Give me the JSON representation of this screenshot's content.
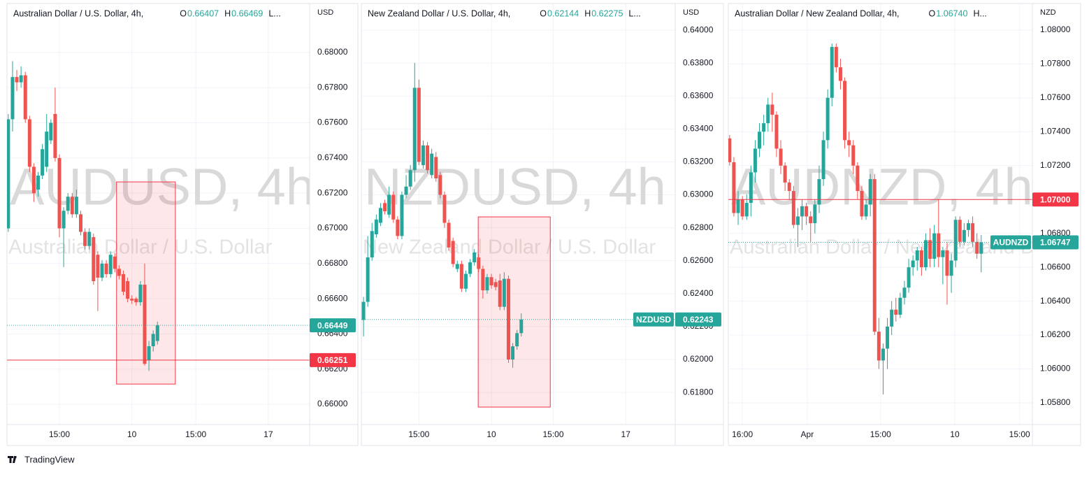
{
  "chart_data": [
    {
      "type": "candlestick",
      "title": "Australian Dollar / U.S. Dollar, 4h,",
      "legend_items": [
        [
          "O",
          "0.66407"
        ],
        [
          "H",
          "0.66469"
        ],
        [
          "L..."
        ]
      ],
      "watermark": "AUDUSD, 4h",
      "watermark_subtitle": "Australian Dollar / U.S. Dollar",
      "unit": "USD",
      "up_color": "#26a69a",
      "down_color": "#ef5350",
      "open": [
        0.67,
        0.6762,
        0.6786,
        0.6783,
        0.6787,
        0.6762,
        0.6735,
        0.6722,
        0.673,
        0.6735,
        0.675,
        0.6765,
        0.674,
        0.67,
        0.671,
        0.6718,
        0.6708,
        0.6708,
        0.6698,
        0.669,
        0.6695,
        0.6685,
        0.6672,
        0.668,
        0.6674,
        0.6684,
        0.6677,
        0.6674,
        0.667,
        0.666,
        0.666,
        0.6658,
        0.6668,
        0.6625,
        0.6633,
        0.6636
      ],
      "high": [
        0.6765,
        0.6795,
        0.679,
        0.6792,
        0.6789,
        0.6764,
        0.6737,
        0.6732,
        0.6748,
        0.6765,
        0.6762,
        0.678,
        0.6742,
        0.6712,
        0.672,
        0.672,
        0.6722,
        0.671,
        0.67,
        0.67,
        0.6697,
        0.6687,
        0.6682,
        0.6682,
        0.6687,
        0.6686,
        0.6679,
        0.6676,
        0.6672,
        0.6662,
        0.6661,
        0.667,
        0.668,
        0.6636,
        0.6642,
        0.6647
      ],
      "low": [
        0.6698,
        0.6755,
        0.6778,
        0.678,
        0.676,
        0.6732,
        0.6715,
        0.6718,
        0.6728,
        0.6732,
        0.6748,
        0.6738,
        0.6695,
        0.6678,
        0.6708,
        0.6706,
        0.6706,
        0.6696,
        0.6688,
        0.6688,
        0.6668,
        0.6653,
        0.667,
        0.6672,
        0.6672,
        0.6675,
        0.6671,
        0.6662,
        0.6658,
        0.6657,
        0.6656,
        0.6656,
        0.6622,
        0.6619,
        0.663,
        0.6634
      ],
      "close": [
        0.6762,
        0.6786,
        0.6783,
        0.6787,
        0.6762,
        0.6735,
        0.672,
        0.673,
        0.6745,
        0.6755,
        0.676,
        0.674,
        0.67,
        0.671,
        0.6718,
        0.6708,
        0.6718,
        0.6698,
        0.669,
        0.6698,
        0.667,
        0.6672,
        0.668,
        0.6674,
        0.6685,
        0.6677,
        0.6673,
        0.6664,
        0.666,
        0.6659,
        0.6658,
        0.6668,
        0.6623,
        0.6633,
        0.664,
        0.66449
      ],
      "xlim": [
        -0.3,
        70.7
      ],
      "xticks": [
        {
          "value": 12,
          "label": "15:00"
        },
        {
          "value": 29,
          "label": "10"
        },
        {
          "value": 44,
          "label": "15:00"
        },
        {
          "value": 61,
          "label": "17"
        }
      ],
      "ylim": [
        0.65885,
        0.68266
      ],
      "yticks": [
        {
          "value": 0.66,
          "label": "0.66000"
        },
        {
          "value": 0.662,
          "label": "0.66200"
        },
        {
          "value": 0.664,
          "label": "0.66400"
        },
        {
          "value": 0.666,
          "label": "0.66600"
        },
        {
          "value": 0.668,
          "label": "0.66800"
        },
        {
          "value": 0.67,
          "label": "0.67000"
        },
        {
          "value": 0.672,
          "label": "0.67200"
        },
        {
          "value": 0.674,
          "label": "0.67400"
        },
        {
          "value": 0.676,
          "label": "0.67600"
        },
        {
          "value": 0.678,
          "label": "0.67800"
        },
        {
          "value": 0.68,
          "label": "0.68000"
        }
      ],
      "grid": true,
      "highlight": {
        "x": [
          25.4,
          39.2
        ],
        "y": [
          0.67264,
          0.66115
        ],
        "color": "#f23645"
      },
      "hlines": [
        {
          "value": 0.66251,
          "label": "0.66251",
          "color": "#f23645"
        }
      ],
      "last_price": {
        "value": 0.66449,
        "label": "0.66449",
        "color": "#26a69a"
      }
    },
    {
      "type": "candlestick",
      "title": "New Zealand Dollar / U.S. Dollar, 4h,",
      "legend_items": [
        [
          "O",
          "0.62144"
        ],
        [
          "H",
          "0.62275"
        ],
        [
          "L..."
        ]
      ],
      "watermark": "NZDUSD, 4h",
      "watermark_subtitle": "New Zealand Dollar / U.S. Dollar",
      "unit": "USD",
      "up_color": "#26a69a",
      "down_color": "#ef5350",
      "open": [
        0.6224,
        0.6235,
        0.6262,
        0.6276,
        0.6283,
        0.6295,
        0.6288,
        0.63,
        0.6285,
        0.6275,
        0.63,
        0.6305,
        0.6315,
        0.6365,
        0.6318,
        0.633,
        0.6312,
        0.6323,
        0.6312,
        0.63,
        0.6283,
        0.6272,
        0.6255,
        0.6258,
        0.6243,
        0.6252,
        0.6259,
        0.6262,
        0.6255,
        0.6242,
        0.625,
        0.6247,
        0.6248,
        0.6232,
        0.6249,
        0.62,
        0.6208,
        0.6216
      ],
      "high": [
        0.6238,
        0.6275,
        0.6283,
        0.6288,
        0.6295,
        0.6297,
        0.6305,
        0.6302,
        0.6287,
        0.6302,
        0.6312,
        0.6318,
        0.638,
        0.637,
        0.6333,
        0.6332,
        0.6328,
        0.6326,
        0.6314,
        0.6302,
        0.6285,
        0.6274,
        0.626,
        0.626,
        0.6254,
        0.6261,
        0.6267,
        0.6264,
        0.6257,
        0.6252,
        0.6252,
        0.6249,
        0.6252,
        0.6253,
        0.6251,
        0.621,
        0.6218,
        0.6228
      ],
      "low": [
        0.6214,
        0.6232,
        0.626,
        0.6274,
        0.6281,
        0.6288,
        0.6286,
        0.6283,
        0.6273,
        0.6273,
        0.6298,
        0.6303,
        0.6308,
        0.6318,
        0.6316,
        0.6313,
        0.631,
        0.6308,
        0.6298,
        0.628,
        0.6266,
        0.6256,
        0.6253,
        0.6241,
        0.6241,
        0.625,
        0.6257,
        0.6253,
        0.6237,
        0.624,
        0.6243,
        0.6242,
        0.623,
        0.623,
        0.6198,
        0.6195,
        0.6206,
        0.6214
      ],
      "close": [
        0.6235,
        0.6262,
        0.6278,
        0.6285,
        0.6292,
        0.629,
        0.63,
        0.6285,
        0.6275,
        0.63,
        0.6305,
        0.6315,
        0.6365,
        0.632,
        0.633,
        0.6315,
        0.6325,
        0.631,
        0.63,
        0.6283,
        0.6268,
        0.6258,
        0.6258,
        0.6243,
        0.6252,
        0.6259,
        0.6265,
        0.6255,
        0.6242,
        0.625,
        0.6245,
        0.6244,
        0.6232,
        0.6249,
        0.62,
        0.6208,
        0.6216,
        0.62243
      ],
      "xlim": [
        -0.5,
        73.1
      ],
      "xticks": [
        {
          "value": 13,
          "label": "15:00"
        },
        {
          "value": 30,
          "label": "10"
        },
        {
          "value": 44.5,
          "label": "15:00"
        },
        {
          "value": 61.5,
          "label": "17"
        }
      ],
      "ylim": [
        0.61605,
        0.64149
      ],
      "yticks": [
        {
          "value": 0.618,
          "label": "0.61800"
        },
        {
          "value": 0.62,
          "label": "0.62000"
        },
        {
          "value": 0.622,
          "label": "0.62200"
        },
        {
          "value": 0.624,
          "label": "0.62400"
        },
        {
          "value": 0.626,
          "label": "0.62600"
        },
        {
          "value": 0.628,
          "label": "0.62800"
        },
        {
          "value": 0.63,
          "label": "0.63000"
        },
        {
          "value": 0.632,
          "label": "0.63200"
        },
        {
          "value": 0.634,
          "label": "0.63400"
        },
        {
          "value": 0.636,
          "label": "0.63600"
        },
        {
          "value": 0.638,
          "label": "0.63800"
        },
        {
          "value": 0.64,
          "label": "0.64000"
        }
      ],
      "grid": true,
      "highlight": {
        "x": [
          26.9,
          43.8
        ],
        "y": [
          0.62866,
          0.61711
        ],
        "color": "#f23645"
      },
      "hlines": [],
      "last_price": {
        "value": 0.62243,
        "label": "0.62243",
        "tag": "NZDUSD",
        "color": "#26a69a"
      }
    },
    {
      "type": "candlestick",
      "title": "Australian Dollar / New Zealand Dollar, 4h,",
      "legend_items": [
        [
          "O",
          "1.06740"
        ],
        [
          "H..."
        ]
      ],
      "watermark": "AUDNZD, 4h",
      "watermark_subtitle": "Australian Dollar / New Zealand Dollar",
      "unit": "NZD",
      "up_color": "#26a69a",
      "down_color": "#ef5350",
      "open": [
        1.0736,
        1.0722,
        1.0692,
        1.07,
        1.069,
        1.0698,
        1.0716,
        1.073,
        1.074,
        1.0745,
        1.0756,
        1.075,
        1.073,
        1.072,
        1.071,
        1.0705,
        1.0685,
        1.069,
        1.0696,
        1.069,
        1.0686,
        1.0697,
        1.0712,
        1.0735,
        1.076,
        1.079,
        1.0778,
        1.077,
        1.0735,
        1.0732,
        1.072,
        1.0705,
        1.069,
        1.0697,
        1.0712,
        1.0622,
        1.0605,
        1.0612,
        1.0625,
        1.0635,
        1.0632,
        1.0642,
        1.0648,
        1.066,
        1.0664,
        1.067,
        1.066,
        1.0676,
        1.0665,
        1.068,
        1.0666,
        1.067,
        1.0655,
        1.0664,
        1.0688,
        1.0675,
        1.0682,
        1.0686,
        1.0675,
        1.0668
      ],
      "high": [
        1.0738,
        1.0725,
        1.0705,
        1.0702,
        1.0703,
        1.072,
        1.0735,
        1.0745,
        1.075,
        1.076,
        1.0763,
        1.0752,
        1.0735,
        1.0722,
        1.0712,
        1.0708,
        1.0695,
        1.07,
        1.0698,
        1.0693,
        1.07,
        1.072,
        1.074,
        1.0765,
        1.0792,
        1.0792,
        1.0783,
        1.0772,
        1.074,
        1.0735,
        1.0722,
        1.0708,
        1.07,
        1.0715,
        1.0715,
        1.063,
        1.0615,
        1.063,
        1.064,
        1.0642,
        1.0645,
        1.0652,
        1.0665,
        1.0667,
        1.0672,
        1.0672,
        1.068,
        1.0683,
        1.0685,
        1.07,
        1.0672,
        1.0675,
        1.0668,
        1.069,
        1.069,
        1.0686,
        1.0688,
        1.069,
        1.068,
        1.0679
      ],
      "low": [
        1.072,
        1.069,
        1.0685,
        1.0688,
        1.0688,
        1.069,
        1.071,
        1.0725,
        1.0732,
        1.074,
        1.074,
        1.0725,
        1.0715,
        1.0705,
        1.07,
        1.0683,
        1.0672,
        1.0682,
        1.0685,
        1.0675,
        1.068,
        1.0692,
        1.0708,
        1.073,
        1.0755,
        1.0775,
        1.0765,
        1.073,
        1.0725,
        1.0715,
        1.07,
        1.0688,
        1.0688,
        1.069,
        1.062,
        1.06,
        1.0585,
        1.06,
        1.062,
        1.0628,
        1.063,
        1.0638,
        1.0645,
        1.0655,
        1.0658,
        1.0655,
        1.0658,
        1.066,
        1.066,
        1.066,
        1.065,
        1.0638,
        1.0645,
        1.066,
        1.0672,
        1.0673,
        1.0678,
        1.0672,
        1.0665,
        1.0657
      ],
      "close": [
        1.0722,
        1.0692,
        1.07,
        1.069,
        1.0698,
        1.0716,
        1.073,
        1.074,
        1.0745,
        1.0756,
        1.075,
        1.073,
        1.072,
        1.071,
        1.0705,
        1.0685,
        1.069,
        1.0696,
        1.069,
        1.0686,
        1.0697,
        1.0712,
        1.0735,
        1.076,
        1.079,
        1.0778,
        1.077,
        1.0735,
        1.0732,
        1.072,
        1.0705,
        1.069,
        1.0697,
        1.0712,
        1.0622,
        1.0605,
        1.0612,
        1.0625,
        1.0635,
        1.0632,
        1.0642,
        1.0648,
        1.066,
        1.0664,
        1.067,
        1.066,
        1.0676,
        1.0665,
        1.068,
        1.0666,
        1.067,
        1.0655,
        1.0664,
        1.0688,
        1.0675,
        1.0682,
        1.0686,
        1.0675,
        1.0668,
        1.06747
      ],
      "xlim": [
        -0.3,
        71
      ],
      "xticks": [
        {
          "value": 3,
          "label": "16:00"
        },
        {
          "value": 18.2,
          "label": "Apr"
        },
        {
          "value": 35.4,
          "label": "15:00"
        },
        {
          "value": 52.8,
          "label": "10"
        },
        {
          "value": 68,
          "label": "15:00"
        }
      ],
      "ylim": [
        1.05672,
        1.08144
      ],
      "yticks": [
        {
          "value": 1.058,
          "label": "1.05800"
        },
        {
          "value": 1.06,
          "label": "1.06000"
        },
        {
          "value": 1.062,
          "label": "1.06200"
        },
        {
          "value": 1.064,
          "label": "1.06400"
        },
        {
          "value": 1.066,
          "label": "1.06600"
        },
        {
          "value": 1.068,
          "label": "1.06800"
        },
        {
          "value": 1.07,
          "label": "1.07000"
        },
        {
          "value": 1.072,
          "label": "1.07200"
        },
        {
          "value": 1.074,
          "label": "1.07400"
        },
        {
          "value": 1.076,
          "label": "1.07600"
        },
        {
          "value": 1.078,
          "label": "1.07800"
        },
        {
          "value": 1.08,
          "label": "1.08000"
        }
      ],
      "grid": true,
      "hlines": [
        {
          "value": 1.07,
          "label": "1.07000",
          "color": "#f23645"
        }
      ],
      "last_price": {
        "value": 1.06747,
        "label": "1.06747",
        "tag": "AUDNZD",
        "color": "#26a69a"
      }
    }
  ],
  "footer": "TradingView"
}
